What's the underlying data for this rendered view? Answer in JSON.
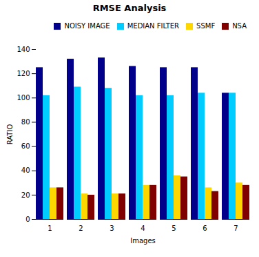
{
  "chart_data": {
    "type": "bar",
    "title": "RMSE Analysis",
    "xlabel": "Images",
    "ylabel": "RATIO",
    "categories": [
      1,
      2,
      3,
      4,
      5,
      6,
      7
    ],
    "series": [
      {
        "name": "NOISY IMAGE",
        "color": "#00008B",
        "values": [
          125,
          132,
          133,
          126,
          125,
          125,
          104
        ]
      },
      {
        "name": "MEDIAN FILTER",
        "color": "#00CCFF",
        "values": [
          102,
          109,
          108,
          102,
          102,
          104,
          104
        ]
      },
      {
        "name": "SSMF",
        "color": "#FFD700",
        "values": [
          26,
          21,
          21,
          28,
          36,
          26,
          30
        ]
      },
      {
        "name": "NSA",
        "color": "#800000",
        "values": [
          26,
          20,
          21,
          28,
          35,
          23,
          28
        ]
      }
    ],
    "ylim": [
      0,
      140
    ],
    "yticks": [
      0,
      20,
      40,
      60,
      80,
      100,
      120,
      140
    ],
    "legend": "upper right",
    "grid": false
  }
}
